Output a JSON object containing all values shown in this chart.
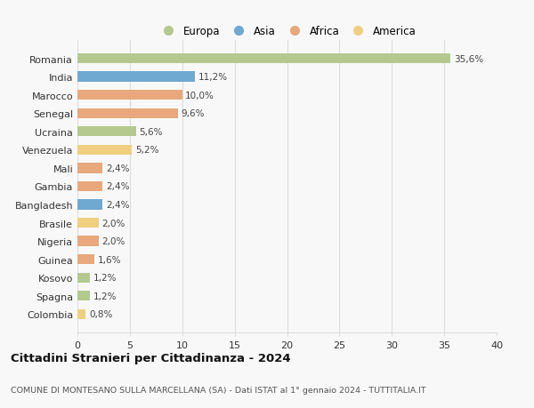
{
  "countries": [
    "Romania",
    "India",
    "Marocco",
    "Senegal",
    "Ucraina",
    "Venezuela",
    "Mali",
    "Gambia",
    "Bangladesh",
    "Brasile",
    "Nigeria",
    "Guinea",
    "Kosovo",
    "Spagna",
    "Colombia"
  ],
  "values": [
    35.6,
    11.2,
    10.0,
    9.6,
    5.6,
    5.2,
    2.4,
    2.4,
    2.4,
    2.0,
    2.0,
    1.6,
    1.2,
    1.2,
    0.8
  ],
  "labels": [
    "35,6%",
    "11,2%",
    "10,0%",
    "9,6%",
    "5,6%",
    "5,2%",
    "2,4%",
    "2,4%",
    "2,4%",
    "2,0%",
    "2,0%",
    "1,6%",
    "1,2%",
    "1,2%",
    "0,8%"
  ],
  "colors": [
    "#b5c98e",
    "#6fa8d0",
    "#e8a87c",
    "#e8a87c",
    "#b5c98e",
    "#f0d080",
    "#e8a87c",
    "#e8a87c",
    "#6fa8d0",
    "#f0d080",
    "#e8a87c",
    "#e8a87c",
    "#b5c98e",
    "#b5c98e",
    "#f0d080"
  ],
  "legend_labels": [
    "Europa",
    "Asia",
    "Africa",
    "America"
  ],
  "legend_colors": [
    "#b5c98e",
    "#6fa8d0",
    "#e8a87c",
    "#f0d080"
  ],
  "title": "Cittadini Stranieri per Cittadinanza - 2024",
  "subtitle": "COMUNE DI MONTESANO SULLA MARCELLANA (SA) - Dati ISTAT al 1° gennaio 2024 - TUTTITALIA.IT",
  "xlim": [
    0,
    40
  ],
  "xticks": [
    0,
    5,
    10,
    15,
    20,
    25,
    30,
    35,
    40
  ],
  "background_color": "#f8f8f8",
  "grid_color": "#dddddd"
}
